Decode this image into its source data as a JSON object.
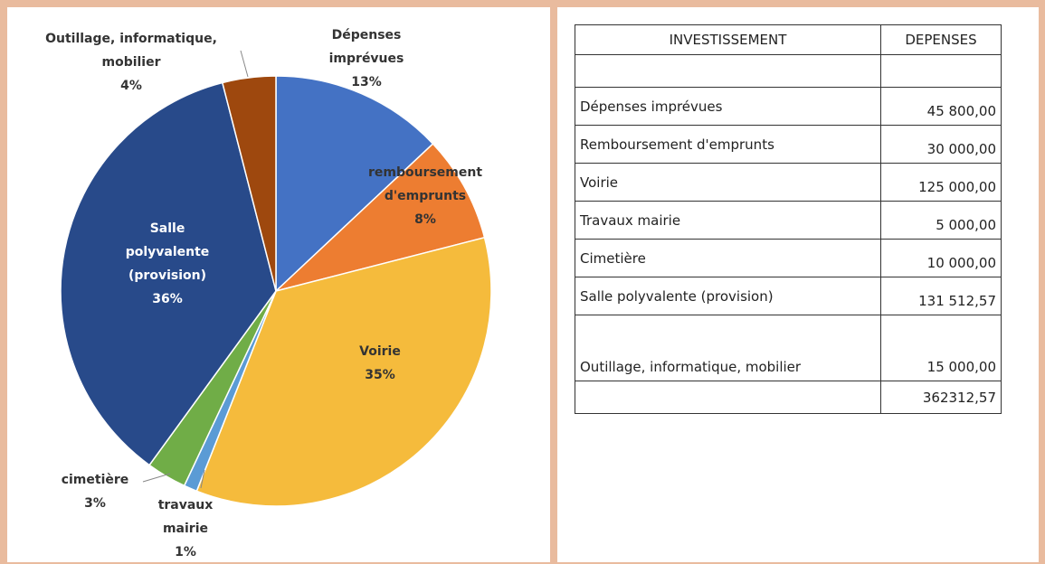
{
  "chart_data": {
    "type": "pie",
    "categories": [
      "Dépenses imprévues",
      "remboursement d'emprunts",
      "Voirie",
      "travaux mairie",
      "cimetière",
      "Salle polyvalente (provision)",
      "Outillage, informatique, mobilier"
    ],
    "values": [
      13,
      8,
      35,
      1,
      3,
      36,
      4
    ],
    "value_labels": [
      "13%",
      "8%",
      "35%",
      "1%",
      "3%",
      "36%",
      "4%"
    ],
    "colors": [
      "#4472c4",
      "#ed7d31",
      "#f5bb3c",
      "#5b9bd5",
      "#70ad47",
      "#284a8a",
      "#9e480e"
    ]
  },
  "table": {
    "header": [
      "INVESTISSEMENT",
      "DEPENSES"
    ],
    "rows": [
      [
        "Dépenses imprévues",
        "45 800,00"
      ],
      [
        "Remboursement d'emprunts",
        "30 000,00"
      ],
      [
        "Voirie",
        "125 000,00"
      ],
      [
        "Travaux mairie",
        "5 000,00"
      ],
      [
        "Cimetière",
        "10 000,00"
      ],
      [
        "Salle polyvalente (provision)",
        "131 512,57"
      ],
      [
        "Outillage, informatique, mobilier",
        "15 000,00"
      ]
    ],
    "total": "362312,57"
  }
}
